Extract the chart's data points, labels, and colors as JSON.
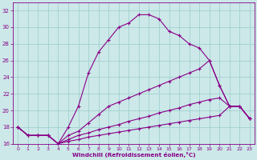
{
  "xlabel": "Windchill (Refroidissement éolien,°C)",
  "xlim": [
    -0.5,
    23.5
  ],
  "ylim": [
    16,
    33
  ],
  "yticks": [
    16,
    18,
    20,
    22,
    24,
    26,
    28,
    30,
    32
  ],
  "xticks": [
    0,
    1,
    2,
    3,
    4,
    5,
    6,
    7,
    8,
    9,
    10,
    11,
    12,
    13,
    14,
    15,
    16,
    17,
    18,
    19,
    20,
    21,
    22,
    23
  ],
  "background_color": "#cce8e8",
  "line_color": "#880088",
  "grid_color": "#99cccc",
  "lines": [
    {
      "x": [
        0,
        1,
        2,
        3,
        4,
        5,
        6,
        7,
        8,
        9,
        10,
        11,
        12,
        13,
        14,
        15,
        16,
        17,
        18,
        19,
        20,
        21,
        22,
        23
      ],
      "y": [
        18,
        17,
        17,
        17,
        16,
        18,
        20.5,
        24.5,
        27,
        28.5,
        30,
        30.5,
        31.5,
        31.5,
        31,
        29.5,
        29,
        28,
        27.5,
        26,
        23,
        20.5,
        20.5,
        19
      ],
      "marker": "+"
    },
    {
      "x": [
        0,
        1,
        2,
        3,
        4,
        5,
        6,
        7,
        8,
        9,
        10,
        11,
        12,
        13,
        14,
        15,
        16,
        17,
        18,
        19,
        20,
        21,
        22,
        23
      ],
      "y": [
        18,
        17,
        17,
        17,
        16,
        17,
        17.5,
        18.5,
        19.5,
        20.5,
        21,
        21.5,
        22,
        22.5,
        23,
        23.5,
        24,
        24.5,
        25,
        26,
        23,
        20.5,
        20.5,
        19
      ],
      "marker": "+"
    },
    {
      "x": [
        0,
        1,
        2,
        3,
        4,
        5,
        6,
        7,
        8,
        9,
        10,
        11,
        12,
        13,
        14,
        15,
        16,
        17,
        18,
        19,
        20,
        21,
        22,
        23
      ],
      "y": [
        18,
        17,
        17,
        17,
        16,
        16.5,
        17,
        17.3,
        17.7,
        18,
        18.3,
        18.7,
        19,
        19.3,
        19.7,
        20,
        20.3,
        20.7,
        21,
        21.3,
        21.5,
        20.5,
        20.5,
        19
      ],
      "marker": "+"
    },
    {
      "x": [
        0,
        1,
        2,
        3,
        4,
        5,
        6,
        7,
        8,
        9,
        10,
        11,
        12,
        13,
        14,
        15,
        16,
        17,
        18,
        19,
        20,
        21,
        22,
        23
      ],
      "y": [
        18,
        17,
        17,
        17,
        16,
        16.3,
        16.5,
        16.8,
        17,
        17.2,
        17.4,
        17.6,
        17.8,
        18,
        18.2,
        18.4,
        18.6,
        18.8,
        19,
        19.2,
        19.4,
        20.5,
        20.5,
        19
      ],
      "marker": "+"
    }
  ]
}
